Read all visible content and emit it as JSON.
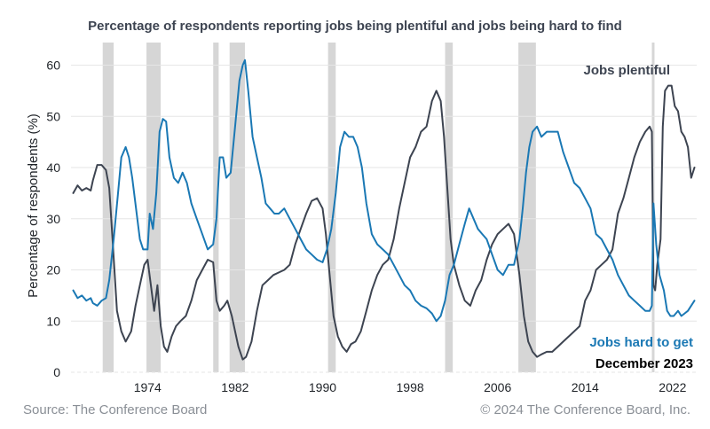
{
  "chart_data": {
    "type": "line",
    "title": "Percentage of respondents reporting jobs being plentiful and jobs being hard to find",
    "ylabel": "Percentage of respondents (%)",
    "xlabel": "",
    "xlim": [
      1967,
      2024.2
    ],
    "ylim": [
      0,
      62
    ],
    "yticks": [
      0,
      10,
      20,
      30,
      40,
      50,
      60
    ],
    "xticks": [
      1974,
      1982,
      1990,
      1998,
      2006,
      2014,
      2022
    ],
    "grid": true,
    "recessions": [
      [
        1969.9,
        1970.9
      ],
      [
        1973.9,
        1975.2
      ],
      [
        1980.0,
        1980.5
      ],
      [
        1981.5,
        1982.9
      ],
      [
        1990.5,
        1991.2
      ],
      [
        2001.2,
        2001.9
      ],
      [
        2007.9,
        2009.5
      ],
      [
        2020.1,
        2020.3
      ]
    ],
    "series": [
      {
        "name": "Jobs plentiful",
        "color": "#3d4451",
        "points": [
          [
            1967.2,
            35
          ],
          [
            1967.6,
            36.5
          ],
          [
            1968.0,
            35.5
          ],
          [
            1968.4,
            36
          ],
          [
            1968.8,
            35.5
          ],
          [
            1969.0,
            37.5
          ],
          [
            1969.4,
            40.5
          ],
          [
            1969.8,
            40.5
          ],
          [
            1970.2,
            39.5
          ],
          [
            1970.5,
            36
          ],
          [
            1970.8,
            26
          ],
          [
            1971.2,
            12
          ],
          [
            1971.6,
            8
          ],
          [
            1972.0,
            6
          ],
          [
            1972.5,
            8
          ],
          [
            1972.9,
            13
          ],
          [
            1973.3,
            17
          ],
          [
            1973.7,
            21
          ],
          [
            1974.0,
            22
          ],
          [
            1974.3,
            17
          ],
          [
            1974.6,
            12
          ],
          [
            1974.9,
            17
          ],
          [
            1975.2,
            9
          ],
          [
            1975.5,
            5
          ],
          [
            1975.8,
            4
          ],
          [
            1976.2,
            7
          ],
          [
            1976.6,
            9
          ],
          [
            1977.0,
            10
          ],
          [
            1977.5,
            11
          ],
          [
            1978.0,
            14
          ],
          [
            1978.5,
            18
          ],
          [
            1979.0,
            20
          ],
          [
            1979.5,
            22
          ],
          [
            1980.0,
            21.5
          ],
          [
            1980.3,
            14
          ],
          [
            1980.6,
            12
          ],
          [
            1981.0,
            13
          ],
          [
            1981.3,
            14
          ],
          [
            1981.7,
            11
          ],
          [
            1982.0,
            8
          ],
          [
            1982.3,
            5
          ],
          [
            1982.7,
            2.5
          ],
          [
            1983.0,
            3
          ],
          [
            1983.5,
            6
          ],
          [
            1984.0,
            12
          ],
          [
            1984.5,
            17
          ],
          [
            1985.0,
            18
          ],
          [
            1985.5,
            19
          ],
          [
            1986.0,
            19.5
          ],
          [
            1986.5,
            20
          ],
          [
            1987.0,
            21
          ],
          [
            1987.5,
            25
          ],
          [
            1988.0,
            28
          ],
          [
            1988.5,
            31
          ],
          [
            1989.0,
            33.5
          ],
          [
            1989.5,
            34
          ],
          [
            1990.0,
            32
          ],
          [
            1990.3,
            27
          ],
          [
            1990.6,
            20
          ],
          [
            1991.0,
            11
          ],
          [
            1991.4,
            7
          ],
          [
            1991.8,
            5
          ],
          [
            1992.2,
            4
          ],
          [
            1992.6,
            5.5
          ],
          [
            1993.0,
            6
          ],
          [
            1993.5,
            8
          ],
          [
            1994.0,
            12
          ],
          [
            1994.5,
            16
          ],
          [
            1995.0,
            19
          ],
          [
            1995.5,
            21
          ],
          [
            1996.0,
            22
          ],
          [
            1996.5,
            26
          ],
          [
            1997.0,
            32
          ],
          [
            1997.5,
            37
          ],
          [
            1998.0,
            42
          ],
          [
            1998.5,
            44
          ],
          [
            1999.0,
            47
          ],
          [
            1999.5,
            48
          ],
          [
            2000.0,
            53
          ],
          [
            2000.4,
            55
          ],
          [
            2000.8,
            53
          ],
          [
            2001.1,
            46
          ],
          [
            2001.4,
            36
          ],
          [
            2001.7,
            26
          ],
          [
            2002.0,
            21
          ],
          [
            2002.5,
            17
          ],
          [
            2003.0,
            14
          ],
          [
            2003.5,
            13
          ],
          [
            2004.0,
            16
          ],
          [
            2004.5,
            18
          ],
          [
            2005.0,
            22
          ],
          [
            2005.5,
            25
          ],
          [
            2006.0,
            27
          ],
          [
            2006.5,
            28
          ],
          [
            2007.0,
            29
          ],
          [
            2007.5,
            27
          ],
          [
            2008.0,
            19
          ],
          [
            2008.4,
            11
          ],
          [
            2008.8,
            6
          ],
          [
            2009.2,
            4
          ],
          [
            2009.6,
            3
          ],
          [
            2010.0,
            3.5
          ],
          [
            2010.5,
            4
          ],
          [
            2011.0,
            4
          ],
          [
            2011.5,
            5
          ],
          [
            2012.0,
            6
          ],
          [
            2012.5,
            7
          ],
          [
            2013.0,
            8
          ],
          [
            2013.5,
            9
          ],
          [
            2014.0,
            14
          ],
          [
            2014.5,
            16
          ],
          [
            2015.0,
            20
          ],
          [
            2015.5,
            21
          ],
          [
            2016.0,
            22
          ],
          [
            2016.5,
            24
          ],
          [
            2017.0,
            31
          ],
          [
            2017.5,
            34
          ],
          [
            2018.0,
            38
          ],
          [
            2018.5,
            42
          ],
          [
            2019.0,
            45
          ],
          [
            2019.5,
            47
          ],
          [
            2019.9,
            48
          ],
          [
            2020.1,
            47
          ],
          [
            2020.25,
            17
          ],
          [
            2020.4,
            16
          ],
          [
            2020.6,
            21
          ],
          [
            2020.9,
            26
          ],
          [
            2021.1,
            48
          ],
          [
            2021.3,
            55
          ],
          [
            2021.6,
            56
          ],
          [
            2021.9,
            56
          ],
          [
            2022.2,
            52
          ],
          [
            2022.5,
            51
          ],
          [
            2022.8,
            47
          ],
          [
            2023.1,
            46
          ],
          [
            2023.4,
            44
          ],
          [
            2023.7,
            38
          ],
          [
            2024.0,
            40
          ]
        ]
      },
      {
        "name": "Jobs hard to get",
        "color": "#1a78b4",
        "points": [
          [
            1967.2,
            16
          ],
          [
            1967.6,
            14.5
          ],
          [
            1968.0,
            15
          ],
          [
            1968.4,
            14
          ],
          [
            1968.8,
            14.5
          ],
          [
            1969.0,
            13.5
          ],
          [
            1969.4,
            13
          ],
          [
            1969.8,
            14
          ],
          [
            1970.2,
            14.5
          ],
          [
            1970.5,
            18
          ],
          [
            1970.9,
            26
          ],
          [
            1971.3,
            35
          ],
          [
            1971.6,
            42
          ],
          [
            1972.0,
            44
          ],
          [
            1972.3,
            42
          ],
          [
            1972.6,
            38
          ],
          [
            1973.0,
            31
          ],
          [
            1973.3,
            26
          ],
          [
            1973.6,
            24
          ],
          [
            1974.0,
            24
          ],
          [
            1974.2,
            31
          ],
          [
            1974.5,
            28
          ],
          [
            1974.8,
            35
          ],
          [
            1975.1,
            47
          ],
          [
            1975.4,
            49.5
          ],
          [
            1975.7,
            49
          ],
          [
            1976.0,
            42
          ],
          [
            1976.4,
            38
          ],
          [
            1976.8,
            37
          ],
          [
            1977.2,
            39
          ],
          [
            1977.6,
            37
          ],
          [
            1978.0,
            33
          ],
          [
            1978.5,
            30
          ],
          [
            1979.0,
            27
          ],
          [
            1979.5,
            24
          ],
          [
            1980.0,
            25
          ],
          [
            1980.3,
            30
          ],
          [
            1980.6,
            42
          ],
          [
            1980.9,
            42
          ],
          [
            1981.2,
            38
          ],
          [
            1981.6,
            39
          ],
          [
            1982.0,
            48
          ],
          [
            1982.4,
            57
          ],
          [
            1982.7,
            60
          ],
          [
            1982.9,
            61
          ],
          [
            1983.2,
            55
          ],
          [
            1983.6,
            46
          ],
          [
            1984.0,
            42
          ],
          [
            1984.4,
            38
          ],
          [
            1984.8,
            33
          ],
          [
            1985.2,
            32
          ],
          [
            1985.6,
            31
          ],
          [
            1986.0,
            31
          ],
          [
            1986.5,
            32
          ],
          [
            1987.0,
            30
          ],
          [
            1987.5,
            28
          ],
          [
            1988.0,
            26
          ],
          [
            1988.5,
            24
          ],
          [
            1989.0,
            23
          ],
          [
            1989.5,
            22
          ],
          [
            1990.0,
            21.5
          ],
          [
            1990.4,
            24
          ],
          [
            1990.8,
            28
          ],
          [
            1991.2,
            35
          ],
          [
            1991.6,
            44
          ],
          [
            1992.0,
            47
          ],
          [
            1992.4,
            46
          ],
          [
            1992.8,
            46
          ],
          [
            1993.2,
            44
          ],
          [
            1993.6,
            40
          ],
          [
            1994.0,
            33
          ],
          [
            1994.5,
            27
          ],
          [
            1995.0,
            25
          ],
          [
            1995.5,
            24
          ],
          [
            1996.0,
            23
          ],
          [
            1996.5,
            21
          ],
          [
            1997.0,
            19
          ],
          [
            1997.5,
            17
          ],
          [
            1998.0,
            16
          ],
          [
            1998.5,
            14
          ],
          [
            1999.0,
            13
          ],
          [
            1999.5,
            12.5
          ],
          [
            2000.0,
            11.5
          ],
          [
            2000.4,
            10
          ],
          [
            2000.8,
            11
          ],
          [
            2001.2,
            14
          ],
          [
            2001.6,
            19
          ],
          [
            2002.0,
            21
          ],
          [
            2002.5,
            25
          ],
          [
            2003.0,
            29
          ],
          [
            2003.4,
            32
          ],
          [
            2003.8,
            30
          ],
          [
            2004.2,
            28
          ],
          [
            2004.6,
            27
          ],
          [
            2005.0,
            26
          ],
          [
            2005.5,
            23
          ],
          [
            2006.0,
            20
          ],
          [
            2006.5,
            19
          ],
          [
            2007.0,
            21
          ],
          [
            2007.5,
            21
          ],
          [
            2008.0,
            26
          ],
          [
            2008.3,
            32
          ],
          [
            2008.6,
            39
          ],
          [
            2008.9,
            44
          ],
          [
            2009.2,
            47
          ],
          [
            2009.6,
            48
          ],
          [
            2010.0,
            46
          ],
          [
            2010.5,
            47
          ],
          [
            2011.0,
            47
          ],
          [
            2011.5,
            47
          ],
          [
            2012.0,
            43
          ],
          [
            2012.5,
            40
          ],
          [
            2013.0,
            37
          ],
          [
            2013.5,
            36
          ],
          [
            2014.0,
            34
          ],
          [
            2014.5,
            32
          ],
          [
            2015.0,
            27
          ],
          [
            2015.5,
            26
          ],
          [
            2016.0,
            24
          ],
          [
            2016.5,
            22
          ],
          [
            2017.0,
            19
          ],
          [
            2017.5,
            17
          ],
          [
            2018.0,
            15
          ],
          [
            2018.5,
            14
          ],
          [
            2019.0,
            13
          ],
          [
            2019.5,
            12
          ],
          [
            2019.9,
            12
          ],
          [
            2020.1,
            13
          ],
          [
            2020.25,
            33
          ],
          [
            2020.5,
            25
          ],
          [
            2020.8,
            19
          ],
          [
            2021.2,
            16
          ],
          [
            2021.5,
            12
          ],
          [
            2021.8,
            11
          ],
          [
            2022.1,
            11
          ],
          [
            2022.5,
            12
          ],
          [
            2022.8,
            11
          ],
          [
            2023.1,
            11.5
          ],
          [
            2023.4,
            12
          ],
          [
            2023.7,
            13
          ],
          [
            2024.0,
            14
          ]
        ]
      }
    ],
    "annotations": {
      "plentiful_label": "Jobs plentiful",
      "hard_label": "Jobs hard to get",
      "date_label": "December 2023"
    },
    "footer": {
      "source": "Source: The Conference Board",
      "copyright": "© 2024 The Conference Board, Inc."
    }
  }
}
